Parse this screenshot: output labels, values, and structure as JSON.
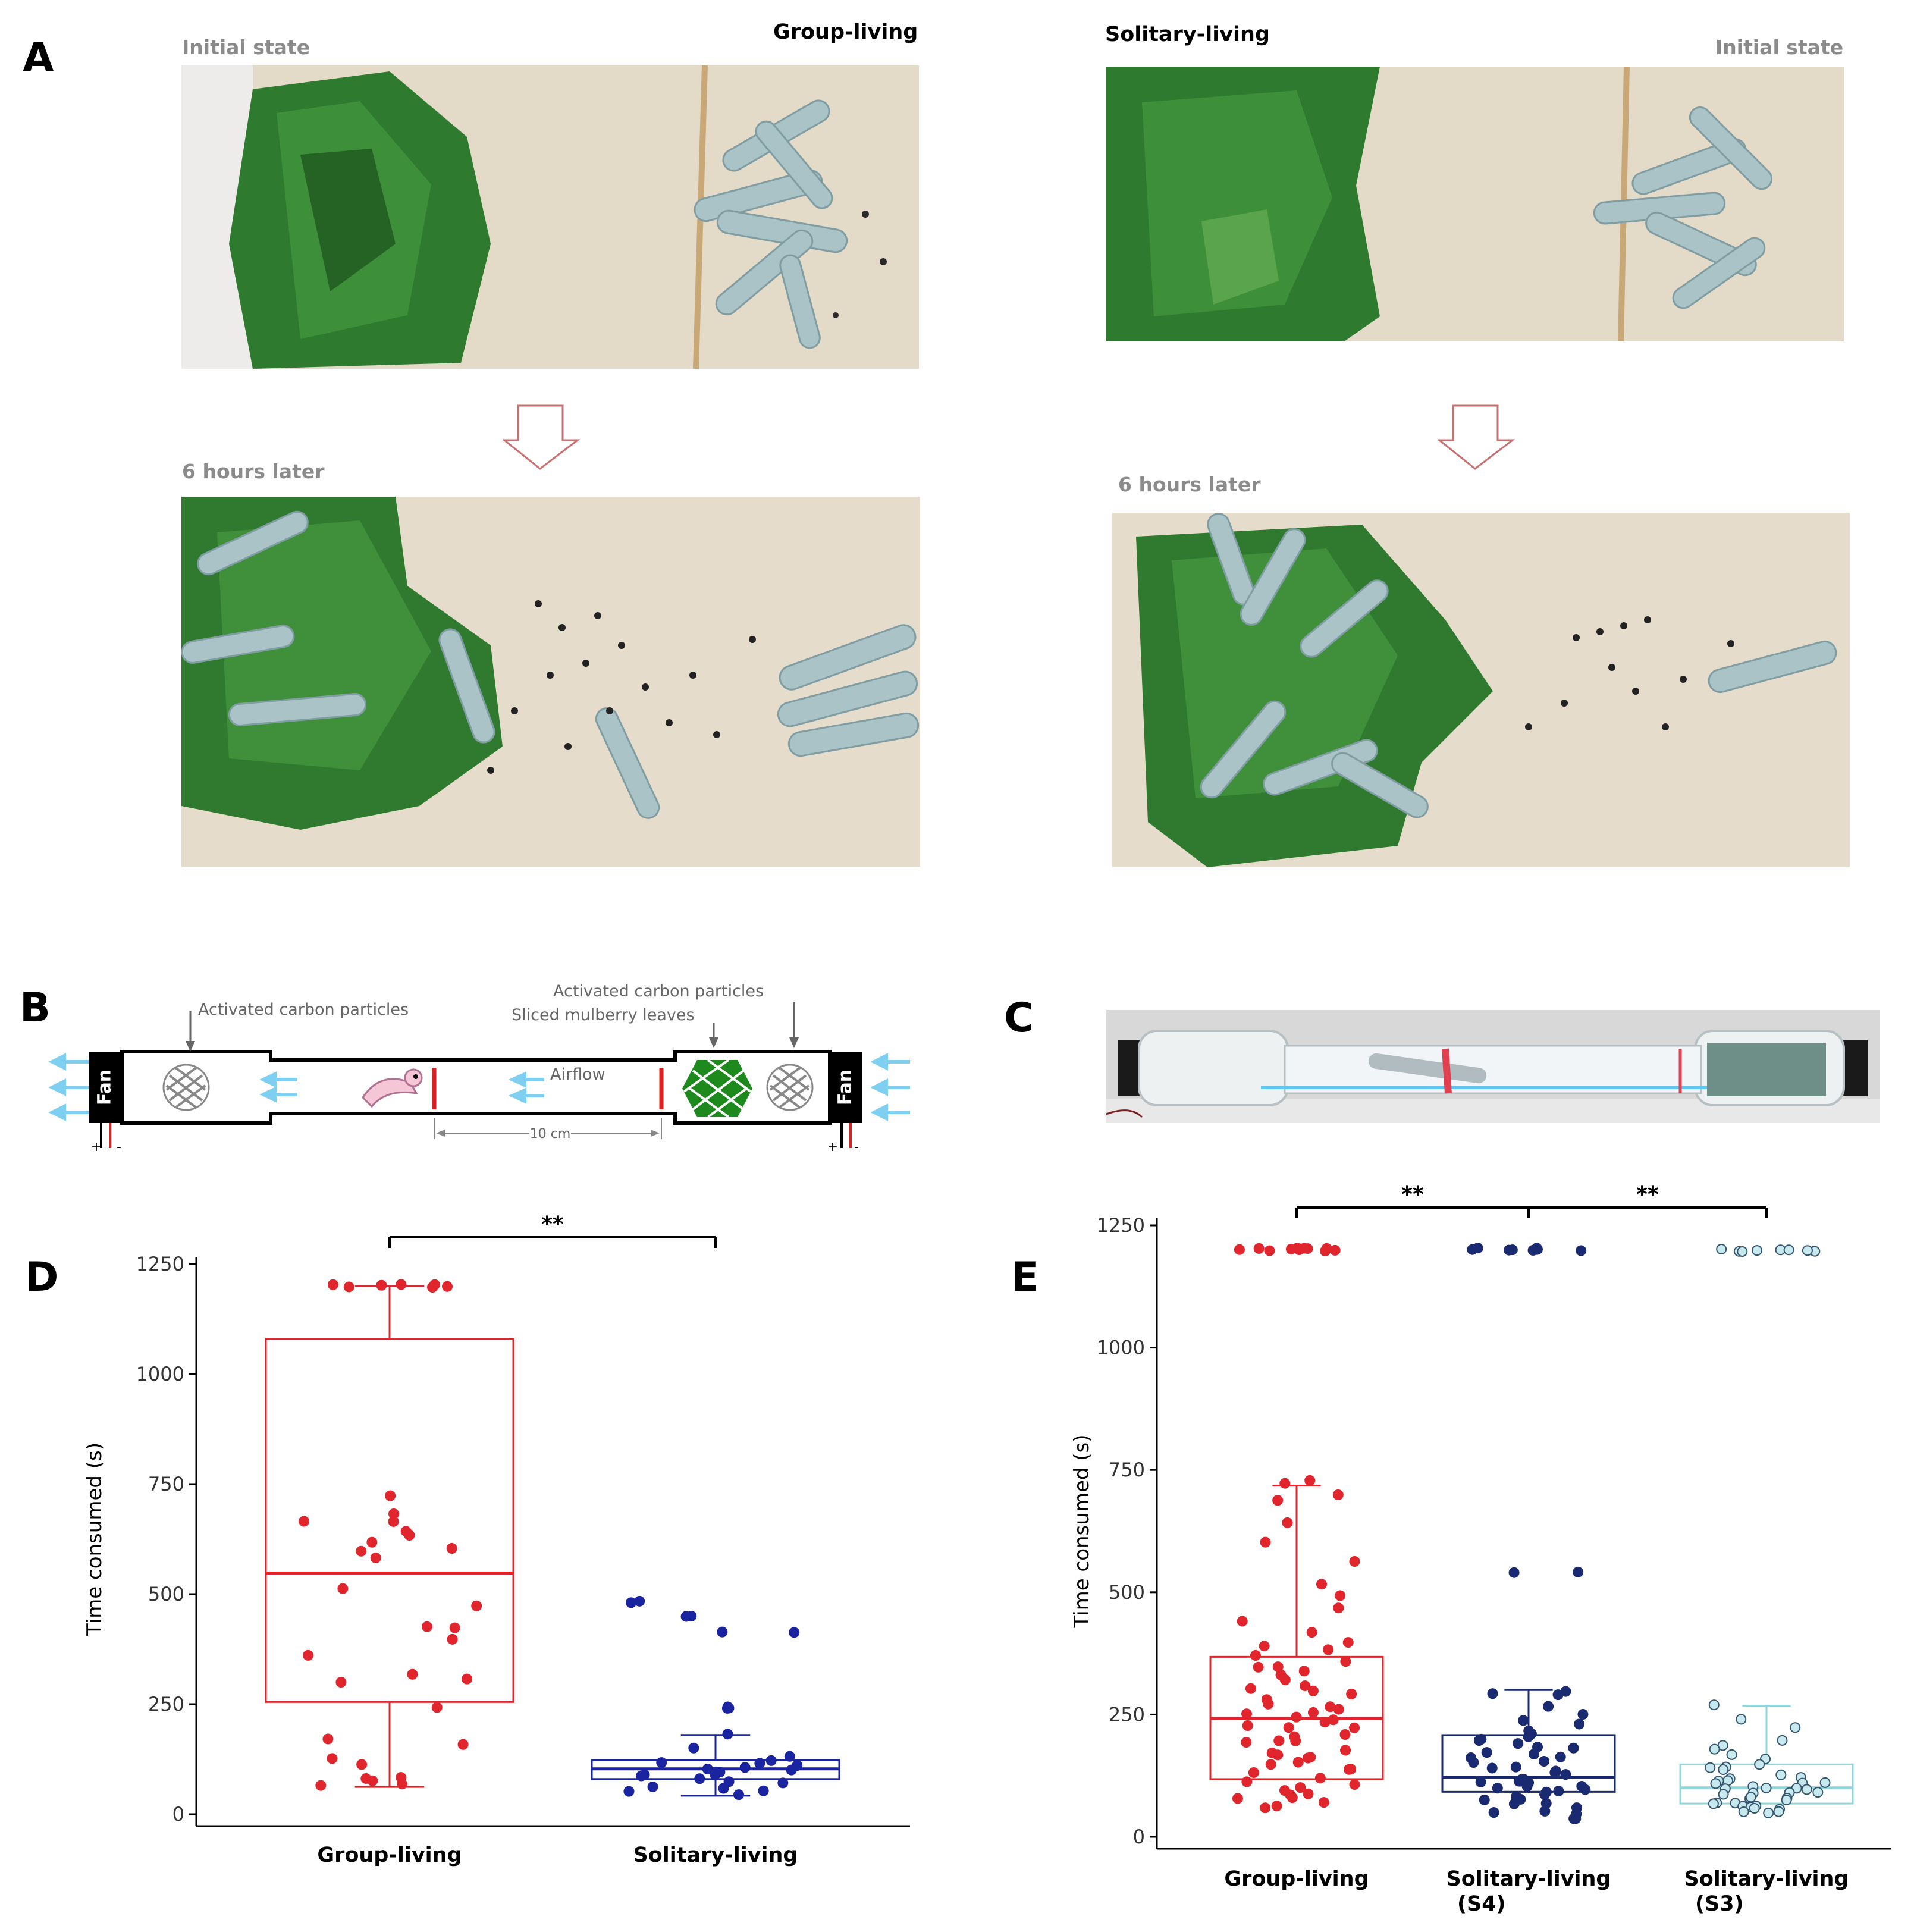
{
  "panel_labels": {
    "a": "A",
    "b": "B",
    "c": "C",
    "d": "D",
    "e": "E"
  },
  "panel_a": {
    "group_title": "Group-living",
    "solitary_title": "Solitary-living",
    "initial_left": "Initial state",
    "initial_right": "Initial state",
    "later_left": "6 hours later",
    "later_right": "6 hours later",
    "colors": {
      "leaf": "#2f7a2f",
      "cloth": "#e6dccb",
      "larva": "#a9c3c6"
    }
  },
  "panel_b": {
    "carbon_left": "Activated carbon particles",
    "carbon_right": "Activated carbon particles",
    "mulberry": "Sliced mulberry leaves",
    "airflow": "Airflow",
    "fan_left": "Fan",
    "fan_right": "Fan",
    "distance": "10 cm",
    "plus": "+",
    "minus": "-",
    "colors": {
      "arrow": "#7fd0f0",
      "barrier": "#e02020",
      "leaves": "#1e8a1e"
    }
  },
  "chart_data": [
    {
      "id": "D",
      "type": "box",
      "ylabel": "Time consumed (s)",
      "ylim": [
        0,
        1250
      ],
      "yticks": [
        0,
        250,
        500,
        750,
        1000,
        1250
      ],
      "categories": [
        "Group-living",
        "Solitary-living"
      ],
      "significance": [
        {
          "from": 0,
          "to": 1,
          "label": "**"
        }
      ],
      "series": [
        {
          "color": "#e0262c",
          "box": {
            "whisker_low": 62,
            "q1": 255,
            "median": 548,
            "q3": 1080,
            "whisker_high": 1200
          },
          "points": [
            1200,
            1200,
            1200,
            1200,
            1200,
            1200,
            1200,
            720,
            680,
            665,
            665,
            640,
            630,
            615,
            605,
            600,
            580,
            510,
            470,
            430,
            420,
            400,
            360,
            320,
            310,
            300,
            240,
            170,
            160,
            130,
            110,
            85,
            80,
            75,
            70,
            62
          ]
        },
        {
          "color": "#1a24a0",
          "box": {
            "whisker_low": 42,
            "q1": 80,
            "median": 103,
            "q3": 123,
            "whisker_high": 180
          },
          "points": [
            480,
            480,
            450,
            450,
            415,
            415,
            240,
            240,
            240,
            180,
            150,
            130,
            125,
            120,
            115,
            110,
            110,
            105,
            100,
            100,
            95,
            90,
            90,
            85,
            80,
            75,
            70,
            65,
            60,
            55,
            50,
            45
          ]
        }
      ]
    },
    {
      "id": "E",
      "type": "box",
      "ylabel": "Time consumed (s)",
      "ylim": [
        0,
        1250
      ],
      "yticks": [
        0,
        250,
        500,
        750,
        1000,
        1250
      ],
      "categories": [
        "Group-living",
        "Solitary-living (S4)",
        "Solitary-living (S3)"
      ],
      "category_lines": [
        [
          "Group-living"
        ],
        [
          "Solitary-living",
          "(S4)"
        ],
        [
          "Solitary-living",
          "(S3)"
        ]
      ],
      "significance": [
        {
          "from": 0,
          "to": 1,
          "label": "**"
        },
        {
          "from": 1,
          "to": 2,
          "label": "**"
        }
      ],
      "series": [
        {
          "color": "#e0262c",
          "fill": "#e0262c",
          "box": {
            "whisker_low": 118,
            "q1": 118,
            "median": 242,
            "q3": 368,
            "whisker_high": 718
          },
          "points": [
            1200,
            1200,
            1200,
            1200,
            1200,
            1200,
            1200,
            1200,
            1200,
            1200,
            1200,
            1200,
            725,
            720,
            700,
            690,
            640,
            600,
            560,
            520,
            490,
            470,
            440,
            420,
            400,
            390,
            380,
            370,
            360,
            350,
            345,
            340,
            330,
            320,
            310,
            300,
            295,
            290,
            280,
            270,
            265,
            260,
            255,
            250,
            245,
            240,
            235,
            230,
            225,
            220,
            210,
            205,
            200,
            195,
            190,
            180,
            175,
            170,
            165,
            160,
            155,
            150,
            140,
            135,
            130,
            120,
            115,
            110,
            100,
            95,
            90,
            85,
            80,
            75,
            70,
            65,
            60
          ]
        },
        {
          "color": "#1a2a70",
          "fill": "#1a2a70",
          "box": {
            "whisker_low": 92,
            "q1": 92,
            "median": 122,
            "q3": 208,
            "whisker_high": 300
          },
          "points": [
            1200,
            1200,
            1200,
            1200,
            1200,
            1200,
            1200,
            1200,
            1200,
            1200,
            540,
            540,
            300,
            295,
            290,
            270,
            250,
            240,
            230,
            220,
            210,
            205,
            200,
            195,
            190,
            185,
            180,
            175,
            170,
            165,
            160,
            155,
            150,
            145,
            140,
            135,
            130,
            125,
            120,
            118,
            115,
            112,
            110,
            108,
            105,
            100,
            98,
            95,
            92,
            90,
            88,
            85,
            80,
            75,
            70,
            65,
            60,
            55,
            50,
            45,
            40,
            35
          ]
        },
        {
          "color": "#8fd6da",
          "fill": "#c7e8ec",
          "stroke": "#35566e",
          "box": {
            "whisker_low": 68,
            "q1": 68,
            "median": 100,
            "q3": 148,
            "whisker_high": 268
          },
          "points": [
            1200,
            1200,
            1200,
            1200,
            1200,
            1200,
            1200,
            1200,
            1200,
            270,
            240,
            220,
            200,
            190,
            180,
            170,
            160,
            150,
            145,
            140,
            135,
            130,
            125,
            120,
            118,
            115,
            112,
            110,
            108,
            105,
            102,
            100,
            98,
            95,
            92,
            90,
            88,
            85,
            82,
            80,
            78,
            75,
            72,
            70,
            68,
            65,
            62,
            60,
            58,
            55,
            52,
            50,
            48
          ]
        }
      ]
    }
  ]
}
